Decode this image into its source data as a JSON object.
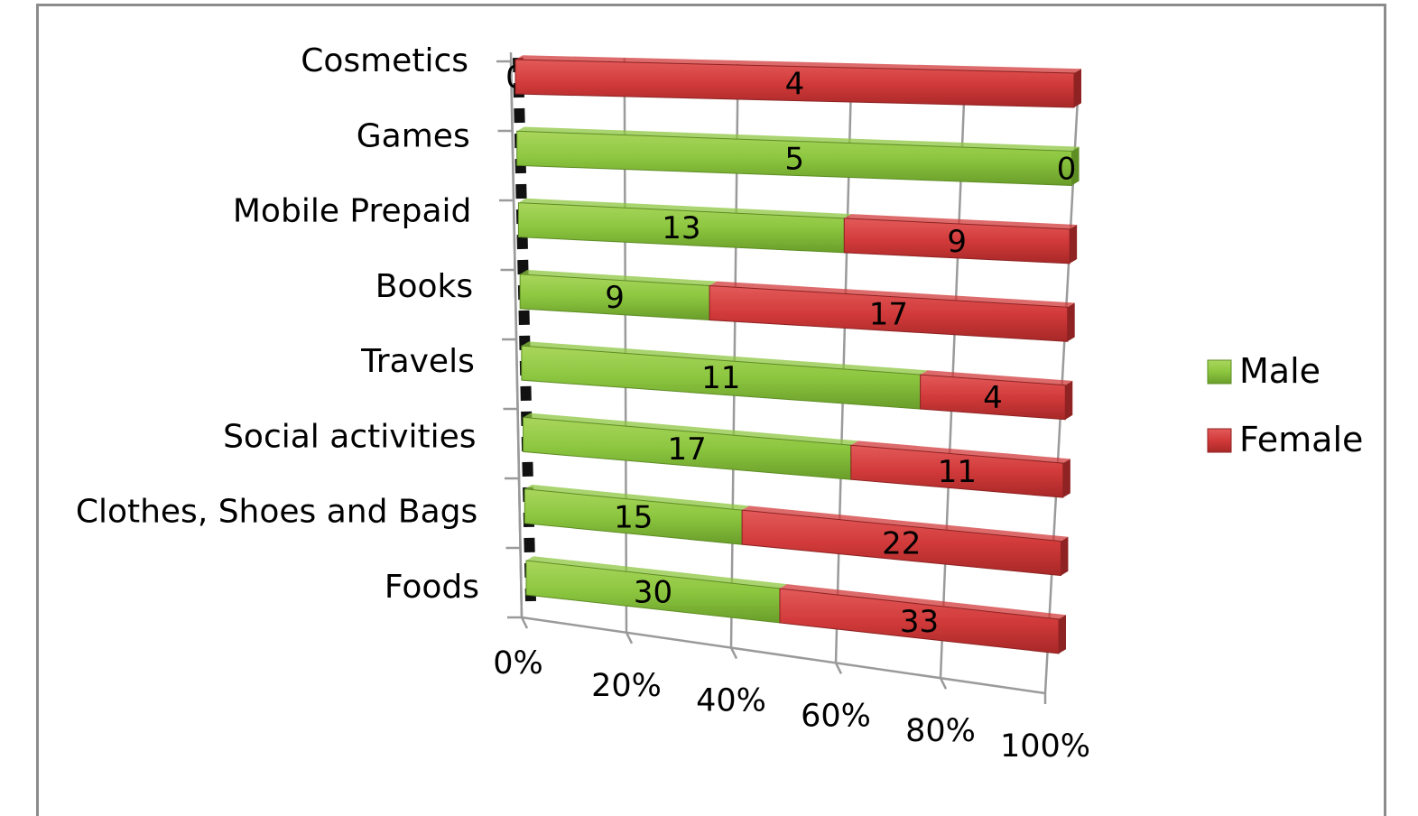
{
  "chart_data": {
    "type": "bar",
    "orientation": "horizontal",
    "stacking": "100% stacked",
    "style": "3d",
    "categories": [
      "Cosmetics",
      "Games",
      "Mobile Prepaid",
      "Books",
      "Travels",
      "Social activities",
      "Clothes, Shoes and Bags",
      "Foods"
    ],
    "series": [
      {
        "name": "Male",
        "color": "#8cc63f",
        "values": [
          0,
          5,
          13,
          9,
          11,
          17,
          15,
          30
        ]
      },
      {
        "name": "Female",
        "color": "#d23a3a",
        "values": [
          4,
          0,
          9,
          17,
          4,
          11,
          22,
          33
        ]
      }
    ],
    "xticks": [
      "0%",
      "20%",
      "40%",
      "60%",
      "80%",
      "100%"
    ],
    "xlim": [
      0,
      100
    ],
    "grid": true,
    "legend": "right"
  }
}
